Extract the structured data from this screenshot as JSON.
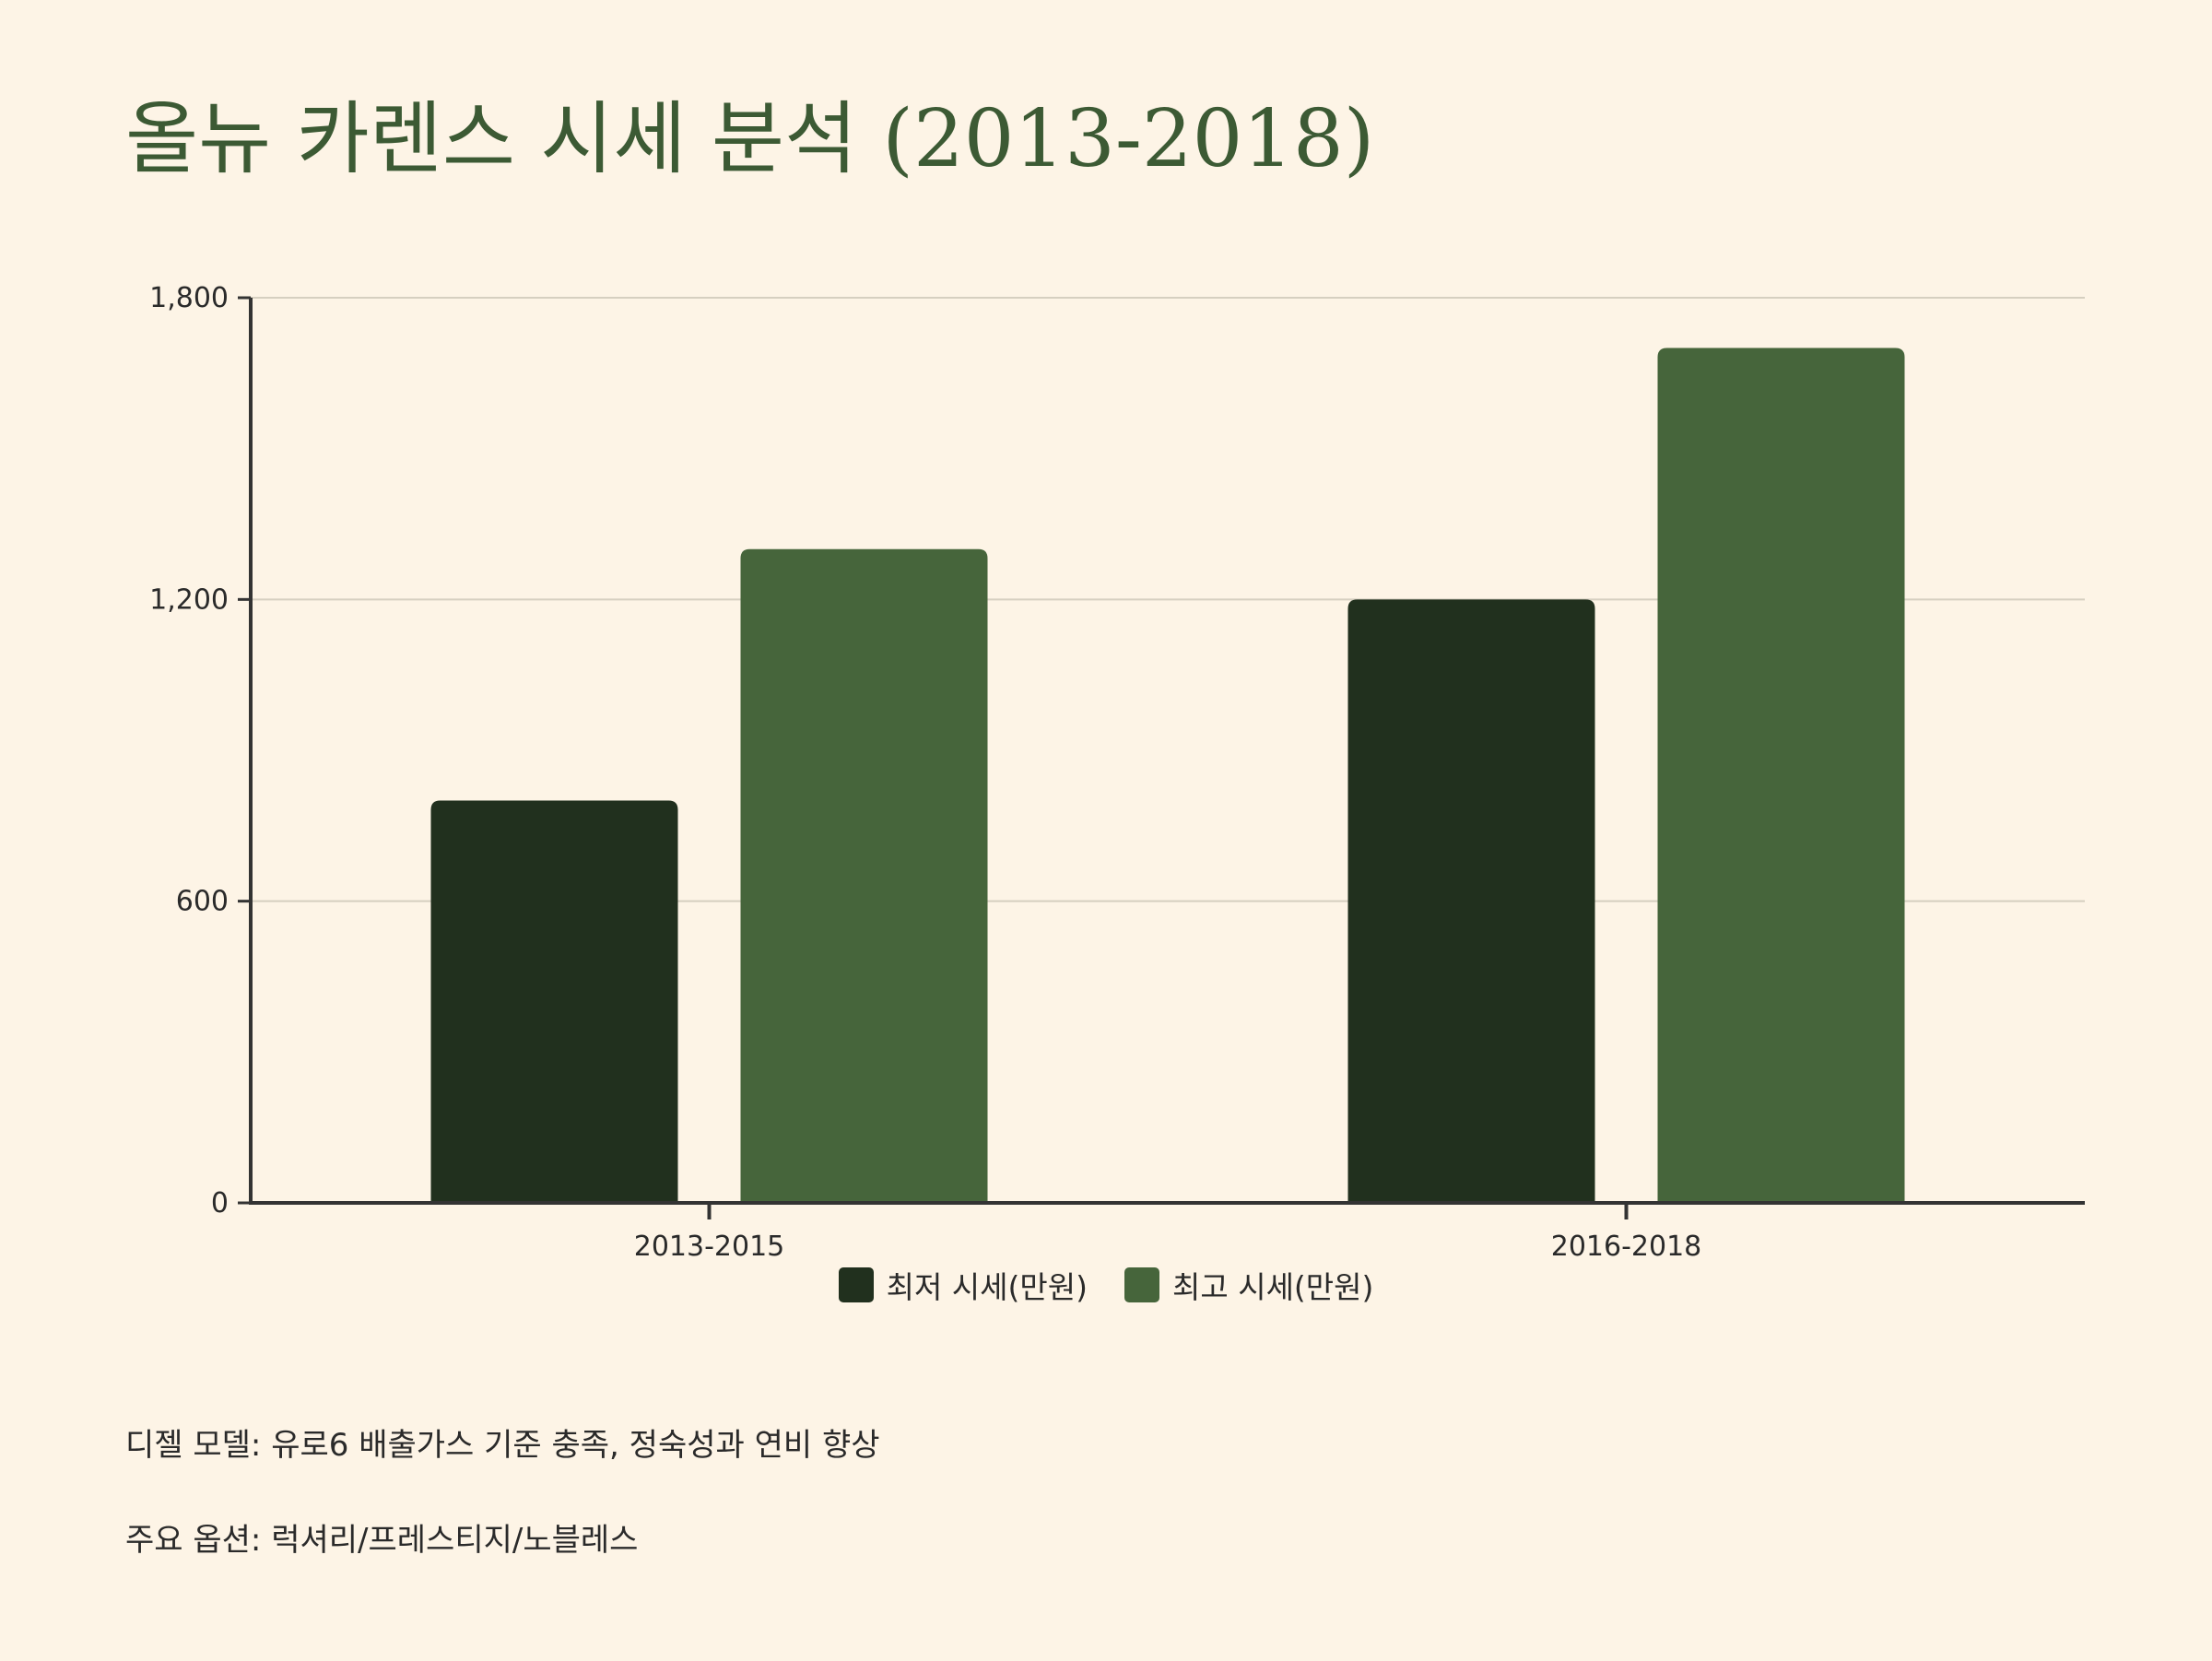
{
  "title": "올뉴 카렌스 시세 분석 (2013-2018)",
  "colors": {
    "background": "#fdf4e6",
    "title": "#3c5a34",
    "series_low": "#21301e",
    "series_high": "#46653b",
    "axis": "#333333",
    "grid": "#d6cfc0"
  },
  "chart_data": {
    "type": "bar",
    "title": "올뉴 카렌스 시세 분석 (2013-2018)",
    "xlabel": "",
    "ylabel": "",
    "categories": [
      "2013-2015",
      "2016-2018"
    ],
    "series": [
      {
        "name": "최저 시세(만원)",
        "values": [
          800,
          1200
        ]
      },
      {
        "name": "최고 시세(만원)",
        "values": [
          1300,
          1700
        ]
      }
    ],
    "ylim": [
      0,
      1800
    ],
    "yticks": [
      0,
      600,
      1200,
      1800
    ],
    "ytick_labels": [
      "0",
      "600",
      "1,200",
      "1,800"
    ],
    "grid": true,
    "legend_position": "bottom-center"
  },
  "notes": [
    "디젤 모델: 유로6 배출가스 기준 충족, 정숙성과 연비 향상",
    "주요 옵션: 럭셔리/프레스티지/노블레스"
  ]
}
